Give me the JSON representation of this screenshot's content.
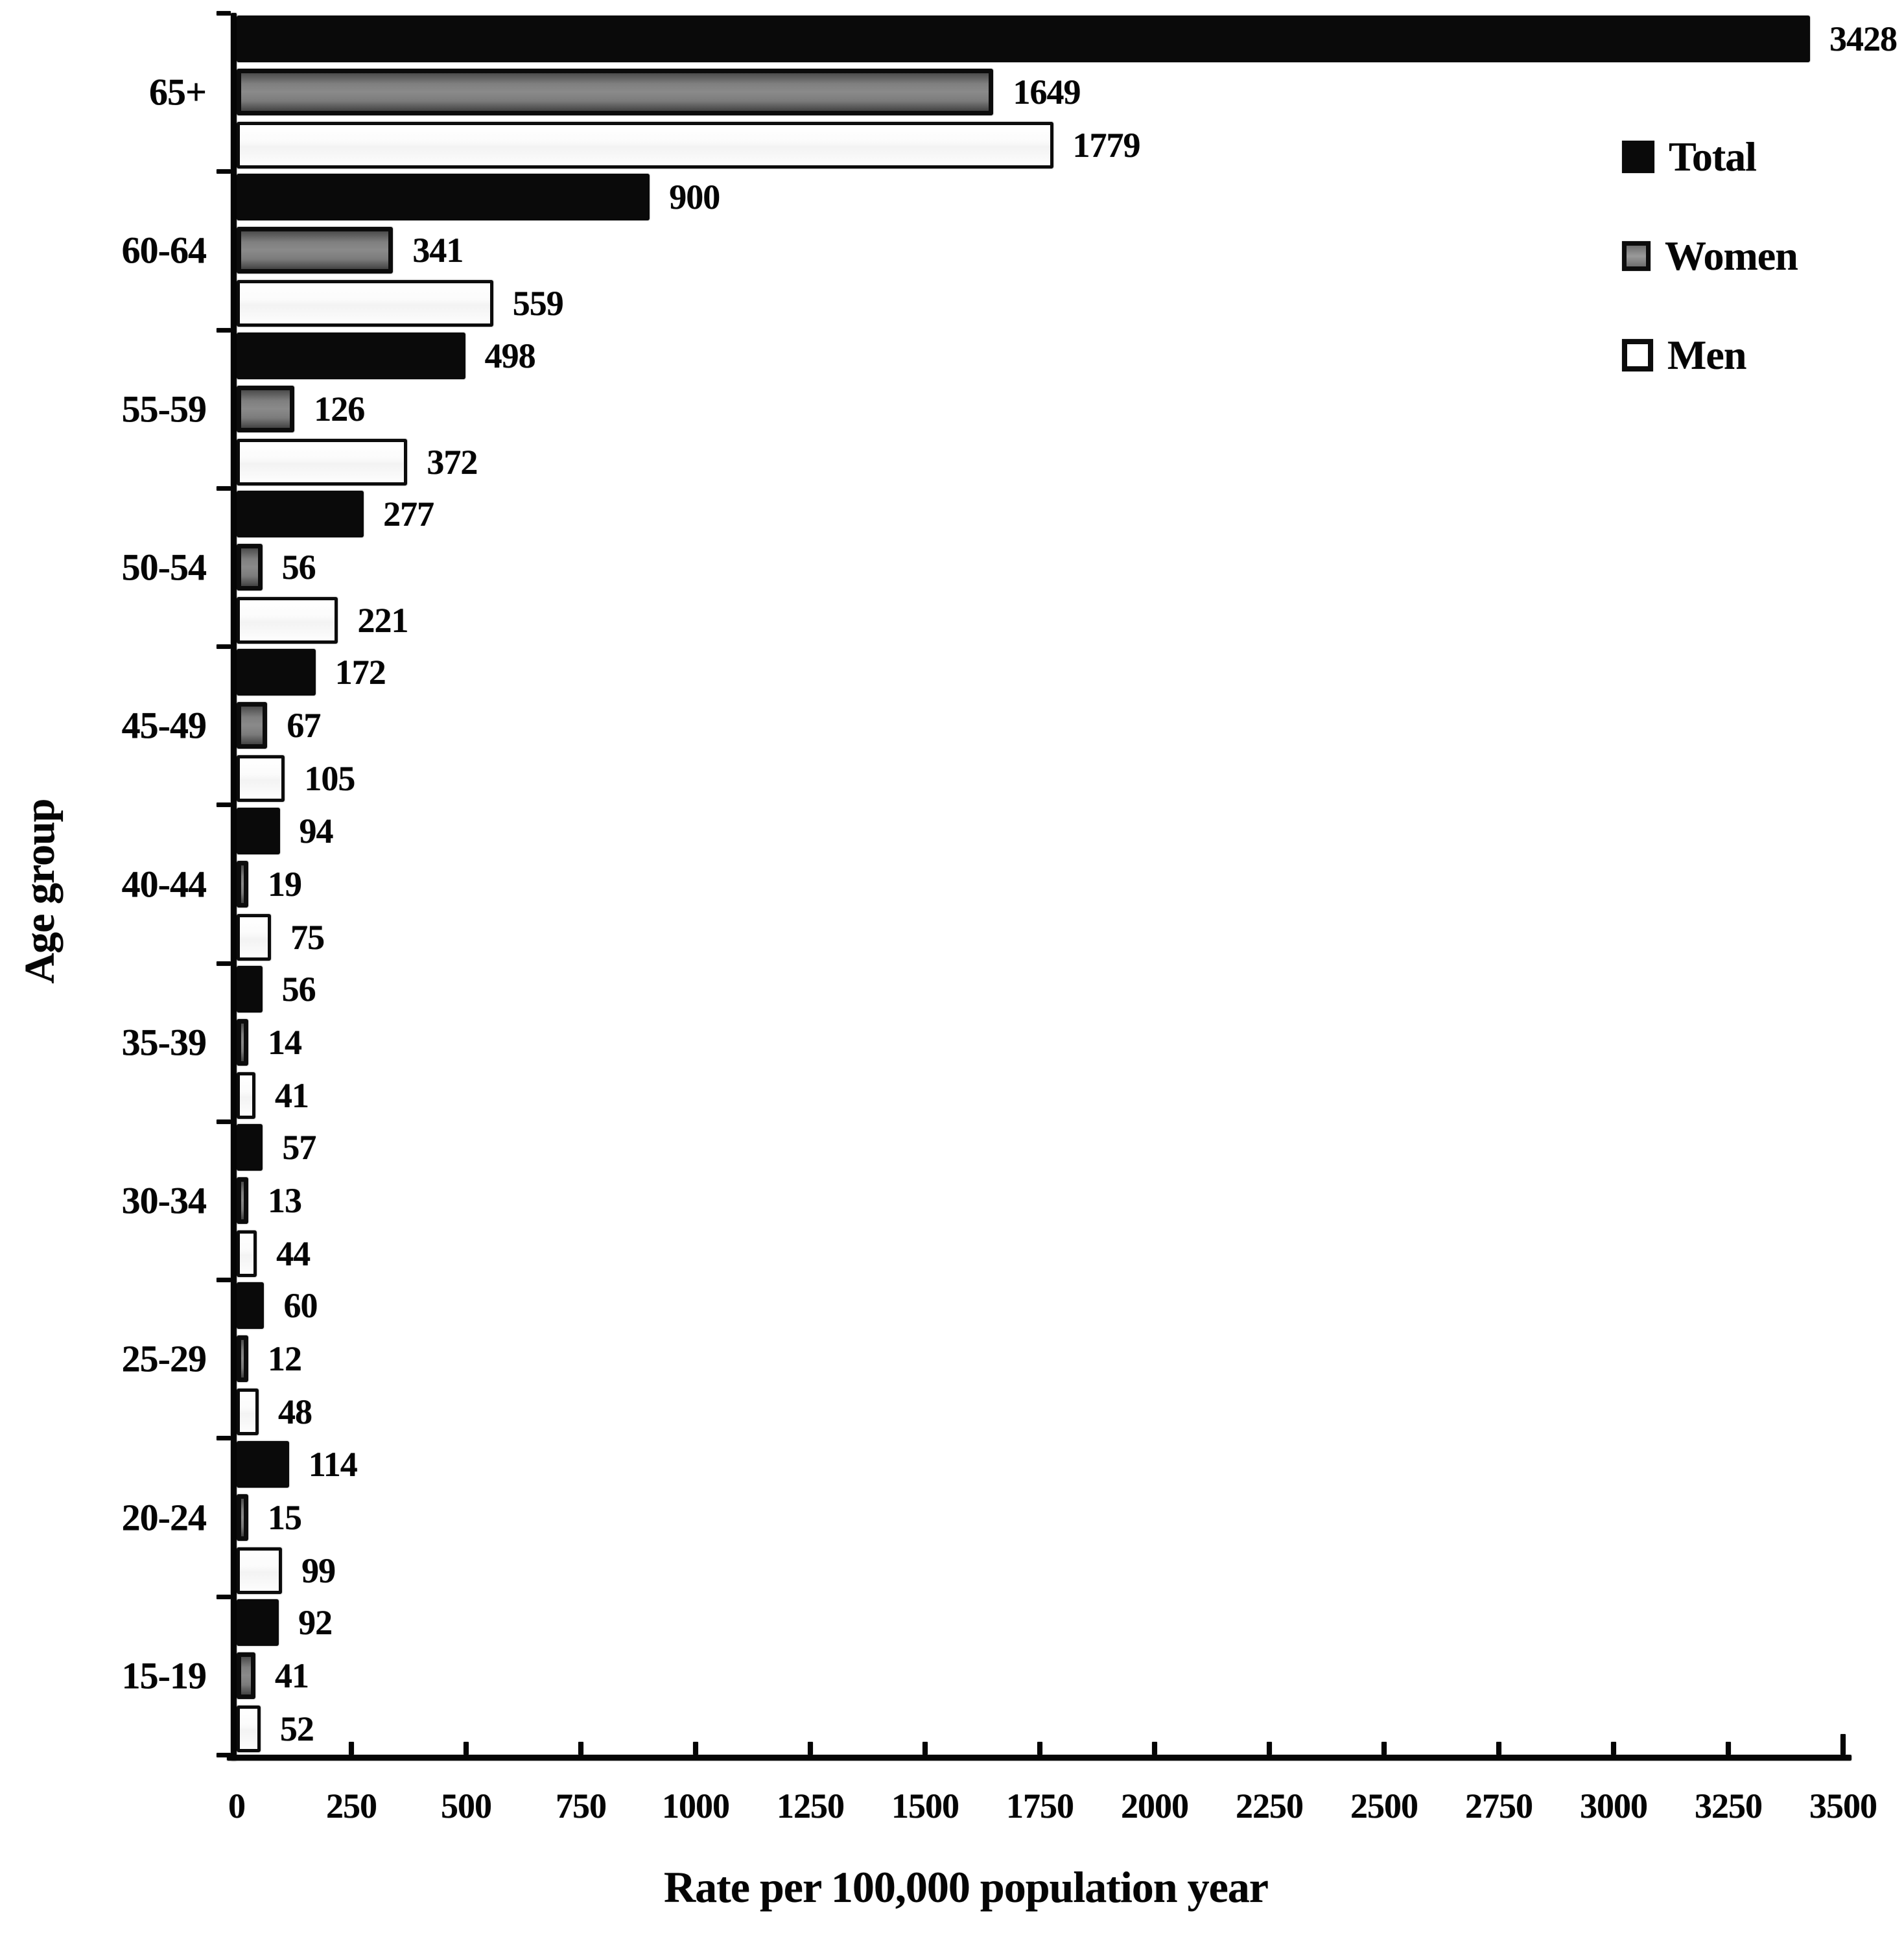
{
  "figure": {
    "background": "#ffffff",
    "axis_color": "#000000",
    "text_color": "#000000"
  },
  "chart_data": {
    "type": "bar",
    "orientation": "horizontal",
    "title": "",
    "xlabel": "Rate per 100,000 population year",
    "ylabel": "Age group",
    "xlim": [
      0,
      3500
    ],
    "x_ticks": [
      0,
      250,
      500,
      750,
      1000,
      1250,
      1500,
      1750,
      2000,
      2250,
      2500,
      2750,
      3000,
      3250,
      3500
    ],
    "grid": "off",
    "bar_value_labels_shown": true,
    "categories": [
      "65+",
      "60-64",
      "55-59",
      "50-54",
      "45-49",
      "40-44",
      "35-39",
      "30-34",
      "25-29",
      "20-24",
      "15-19"
    ],
    "series": [
      {
        "name": "Total",
        "fill": "#0a0a0a",
        "values": [
          3428,
          900,
          498,
          277,
          172,
          94,
          56,
          57,
          60,
          114,
          92
        ]
      },
      {
        "name": "Women",
        "fill": "#7d7d7d",
        "values": [
          1649,
          341,
          126,
          56,
          67,
          19,
          14,
          13,
          12,
          15,
          41
        ]
      },
      {
        "name": "Men",
        "fill": "#fbfbfb",
        "values": [
          1779,
          559,
          372,
          221,
          105,
          75,
          41,
          44,
          48,
          99,
          52
        ]
      }
    ],
    "legend": {
      "position": "top-right",
      "entries": [
        "Total",
        "Women",
        "Men"
      ]
    }
  }
}
